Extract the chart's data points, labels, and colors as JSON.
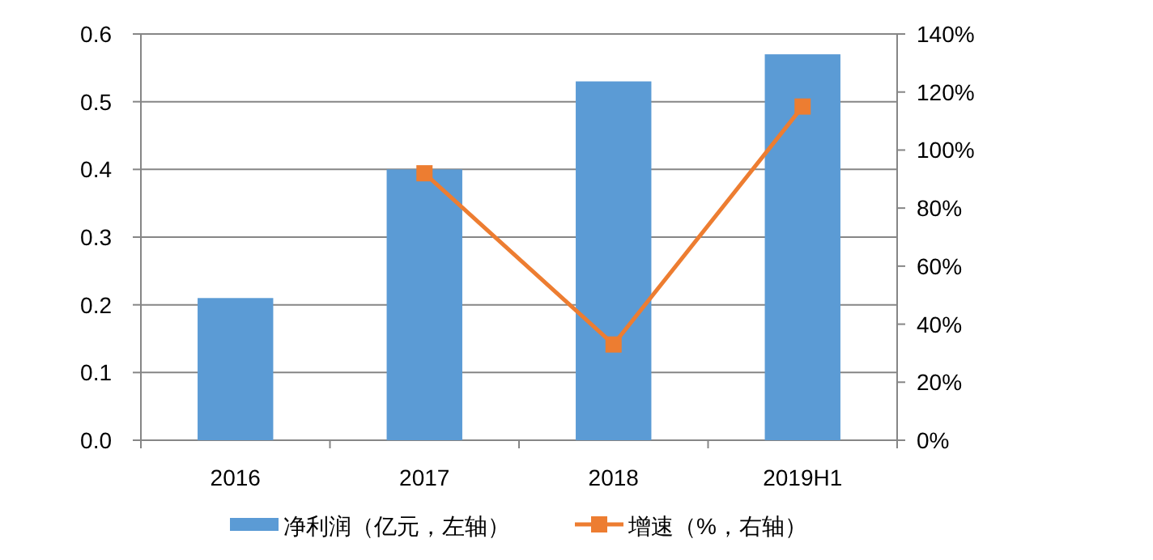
{
  "chart_data": {
    "type": "bar",
    "categories": [
      "2016",
      "2017",
      "2018",
      "2019H1"
    ],
    "series": [
      {
        "name": "净利润（亿元，左轴）",
        "color": "#5b9bd5",
        "values": [
          0.21,
          0.4,
          0.53,
          0.57
        ]
      },
      {
        "name": "增速（%，右轴）",
        "type": "line",
        "axis": "y2",
        "color": "#ed7d31",
        "values": [
          null,
          92,
          33,
          115
        ],
        "marker": "square"
      }
    ],
    "ylim": [
      0,
      0.6
    ],
    "yticks": [
      {
        "value": 0,
        "label": "0.0"
      },
      0.1,
      0.2,
      0.3,
      0.4,
      0.5,
      0.6
    ],
    "y2lim": [
      0,
      140
    ],
    "y2ticks": [
      {
        "value": 0,
        "label": "0%"
      },
      {
        "value": 20,
        "label": "20%"
      },
      {
        "value": 40,
        "label": "40%"
      },
      {
        "value": 60,
        "label": "60%"
      },
      {
        "value": 80,
        "label": "80%"
      },
      {
        "value": 100,
        "label": "100%"
      },
      {
        "value": 120,
        "label": "120%"
      },
      {
        "value": 140,
        "label": "140%"
      }
    ],
    "grid": "y",
    "legend": "bottom"
  }
}
